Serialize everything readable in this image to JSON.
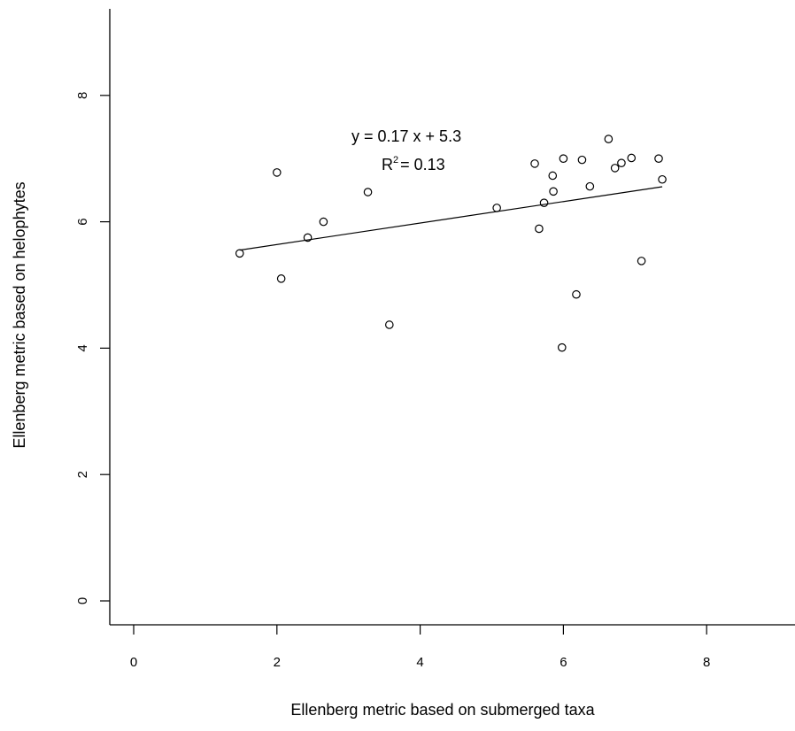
{
  "chart_data": {
    "type": "scatter",
    "xlabel": "Ellenberg metric based on submerged taxa",
    "ylabel": "Ellenberg metric based on helophytes",
    "xlim": [
      -0.4,
      9.3
    ],
    "ylim": [
      -0.4,
      9.3
    ],
    "x_ticks": [
      0,
      2,
      4,
      6,
      8
    ],
    "y_ticks": [
      0,
      2,
      4,
      6,
      8
    ],
    "x_tick_labels": [
      "0",
      "2",
      "4",
      "6",
      "8"
    ],
    "y_tick_labels": [
      "0",
      "2",
      "4",
      "6",
      "8"
    ],
    "grid": false,
    "points": [
      {
        "x": 1.48,
        "y": 5.5
      },
      {
        "x": 2.0,
        "y": 6.78
      },
      {
        "x": 2.06,
        "y": 5.1
      },
      {
        "x": 2.43,
        "y": 5.75
      },
      {
        "x": 2.65,
        "y": 6.0
      },
      {
        "x": 3.27,
        "y": 6.47
      },
      {
        "x": 3.57,
        "y": 4.37
      },
      {
        "x": 5.07,
        "y": 6.22
      },
      {
        "x": 5.6,
        "y": 6.92
      },
      {
        "x": 5.66,
        "y": 5.89
      },
      {
        "x": 5.73,
        "y": 6.3
      },
      {
        "x": 5.85,
        "y": 6.73
      },
      {
        "x": 5.86,
        "y": 6.48
      },
      {
        "x": 5.98,
        "y": 4.01
      },
      {
        "x": 6.0,
        "y": 7.0
      },
      {
        "x": 6.18,
        "y": 4.85
      },
      {
        "x": 6.26,
        "y": 6.98
      },
      {
        "x": 6.37,
        "y": 6.56
      },
      {
        "x": 6.63,
        "y": 7.31
      },
      {
        "x": 6.72,
        "y": 6.85
      },
      {
        "x": 6.81,
        "y": 6.93
      },
      {
        "x": 6.95,
        "y": 7.01
      },
      {
        "x": 7.09,
        "y": 5.38
      },
      {
        "x": 7.33,
        "y": 7.0
      },
      {
        "x": 7.38,
        "y": 6.67
      }
    ],
    "fit_line": {
      "slope": 0.17,
      "intercept": 5.3,
      "x_range": [
        1.48,
        7.38
      ]
    },
    "annotations": {
      "equation": "y = 0.17 x +  5.3",
      "r2_prefix": "R",
      "r2_sup": "2",
      "r2_value": "= 0.13"
    }
  }
}
